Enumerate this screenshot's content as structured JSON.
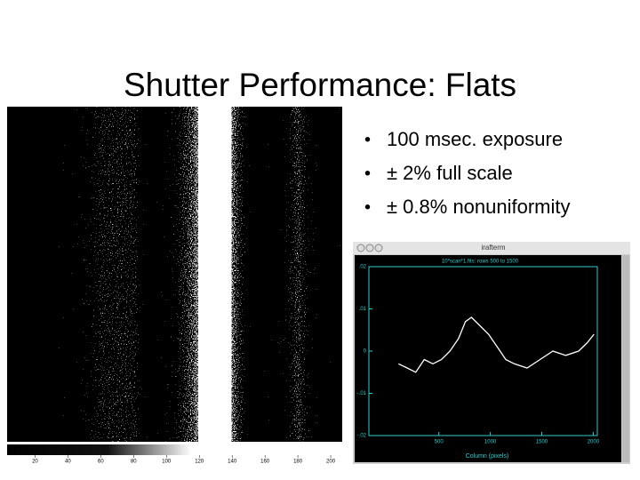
{
  "title": "Shutter Performance: Flats",
  "bullets": [
    "100 msec. exposure",
    "± 2% full scale",
    "± 0.8% nonuniformity"
  ],
  "colorbar": {
    "lim": [
      3,
      207
    ],
    "ticks": [
      20,
      40,
      60,
      80,
      100,
      120,
      140,
      160,
      180,
      200
    ]
  },
  "plot": {
    "window_title": "irafterm",
    "title": "10*scan*1.fits: rows 500 to 1500",
    "xlabel": "Column (pixels)",
    "xlim": [
      -180,
      2040
    ],
    "ylim": [
      -0.02,
      0.02
    ],
    "xticks": [
      500,
      1000,
      1500,
      2000
    ],
    "yticks": [
      {
        "value": 0.02,
        "label": ".02"
      },
      {
        "value": 0.01,
        "label": ".01"
      },
      0,
      {
        "value": -0.01,
        "label": "-.01"
      },
      {
        "value": -0.02,
        "label": "-.02"
      }
    ],
    "x": [
      108,
      192,
      275,
      358,
      442,
      525,
      608,
      692,
      758,
      817,
      900,
      983,
      1067,
      1150,
      1233,
      1358,
      1483,
      1608,
      1733,
      1858,
      1942,
      2008
    ],
    "y": [
      -0.003,
      -0.004,
      -0.005,
      -0.002,
      -0.003,
      -0.002,
      0.0,
      0.003,
      0.007,
      0.008,
      0.006,
      0.004,
      0.001,
      -0.002,
      -0.003,
      -0.004,
      -0.002,
      0.0,
      -0.001,
      0.0,
      0.002,
      0.004
    ]
  }
}
